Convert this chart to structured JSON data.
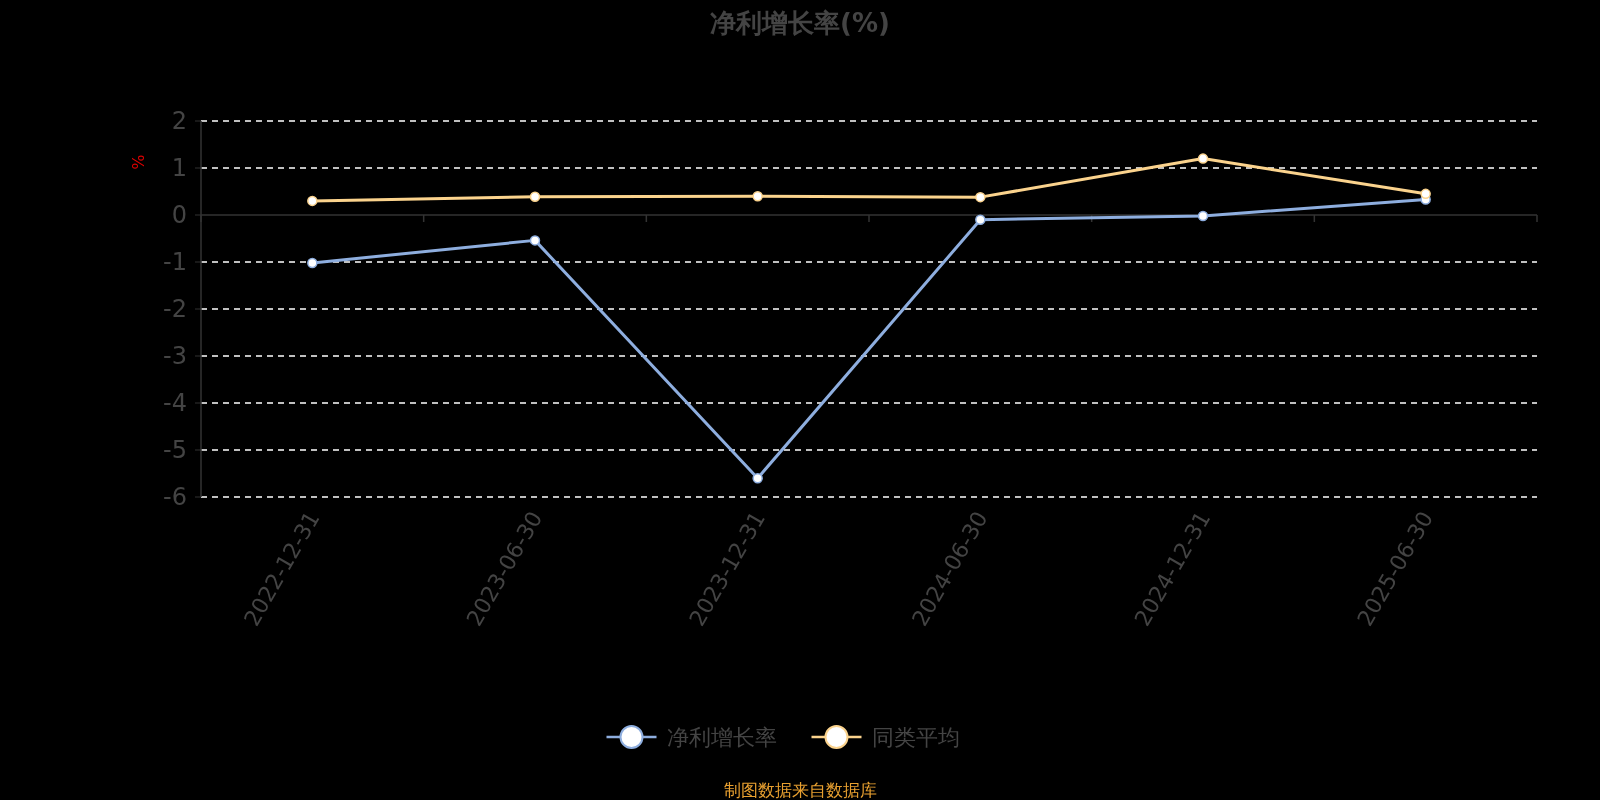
{
  "chart_data": {
    "type": "line",
    "title": "净利增长率(%)",
    "ylabel": "%",
    "categories": [
      "2022-12-31",
      "2023-06-30",
      "2023-12-31",
      "2024-06-30",
      "2024-12-31",
      "2025-06-30"
    ],
    "series": [
      {
        "name": "净利增长率",
        "color": "#8eaedf",
        "values": [
          -1.02,
          -0.54,
          -5.6,
          -0.1,
          -0.02,
          0.33
        ]
      },
      {
        "name": "同类平均",
        "color": "#fbd38d",
        "values": [
          0.3,
          0.39,
          0.4,
          0.38,
          1.2,
          0.45
        ]
      }
    ],
    "ylim": [
      -6,
      2
    ],
    "yticks": [
      -6,
      -5,
      -4,
      -3,
      -2,
      -1,
      0,
      1,
      2
    ],
    "grid": "y",
    "legend": "bottom",
    "marker": "circle",
    "line_style": "solid",
    "annotations": [
      "制图数据来自数据库"
    ]
  }
}
